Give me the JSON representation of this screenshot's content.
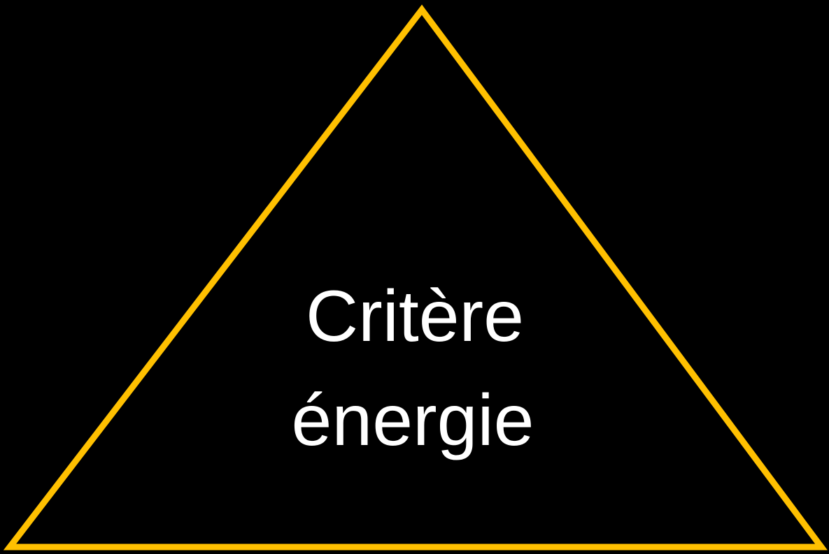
{
  "shape": {
    "label_lines": [
      "Critère",
      "énergie"
    ]
  }
}
